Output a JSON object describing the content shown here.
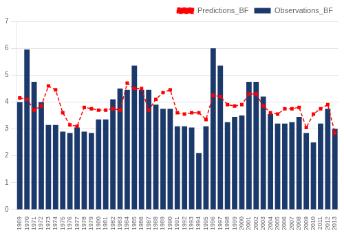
{
  "chart_data": {
    "type": "bar",
    "categories": [
      "1969",
      "1970",
      "1971",
      "1972",
      "1973",
      "1974",
      "1975",
      "1976",
      "1977",
      "1978",
      "1979",
      "1980",
      "1981",
      "1982",
      "1983",
      "1984",
      "1985",
      "1986",
      "1987",
      "1988",
      "1989",
      "1990",
      "1991",
      "1992",
      "1993",
      "1994",
      "1995",
      "1996",
      "1997",
      "1998",
      "1999",
      "2000",
      "2001",
      "2002",
      "2003",
      "2004",
      "2005",
      "2006",
      "2007",
      "2008",
      "2009",
      "2010",
      "2011",
      "2012",
      "2013"
    ],
    "series": [
      {
        "name": "Observations_BF",
        "type": "bar",
        "color": "#1b3a6b",
        "values": [
          4.0,
          5.95,
          4.75,
          4.0,
          3.15,
          3.15,
          2.9,
          2.85,
          3.05,
          2.9,
          2.85,
          3.35,
          3.35,
          4.1,
          4.5,
          4.45,
          5.35,
          4.45,
          4.45,
          3.9,
          3.75,
          3.75,
          3.1,
          3.1,
          3.05,
          2.1,
          3.1,
          6.0,
          5.35,
          3.25,
          3.45,
          3.5,
          4.75,
          4.75,
          4.2,
          3.55,
          3.2,
          3.2,
          3.25,
          3.45,
          2.85,
          2.5,
          3.2,
          3.75,
          3.0
        ]
      },
      {
        "name": "Predictions_BF",
        "type": "line",
        "color": "#ff0000",
        "line_style": "dashed",
        "marker": "square",
        "values": [
          4.15,
          4.1,
          3.7,
          3.85,
          4.6,
          4.45,
          3.6,
          3.15,
          3.1,
          3.8,
          3.75,
          3.7,
          3.7,
          3.75,
          3.7,
          4.7,
          4.5,
          4.5,
          3.7,
          4.1,
          4.35,
          4.45,
          3.6,
          3.55,
          3.6,
          3.6,
          3.35,
          4.25,
          4.2,
          3.9,
          3.85,
          3.9,
          4.3,
          4.3,
          3.85,
          3.6,
          3.55,
          3.75,
          3.75,
          3.8,
          3.05,
          3.55,
          3.75,
          3.9,
          2.85
        ]
      }
    ],
    "ylim": [
      0,
      7
    ],
    "yticks": [
      0,
      1,
      2,
      3,
      4,
      5,
      6,
      7
    ],
    "grid": true,
    "legend": "upper right"
  }
}
